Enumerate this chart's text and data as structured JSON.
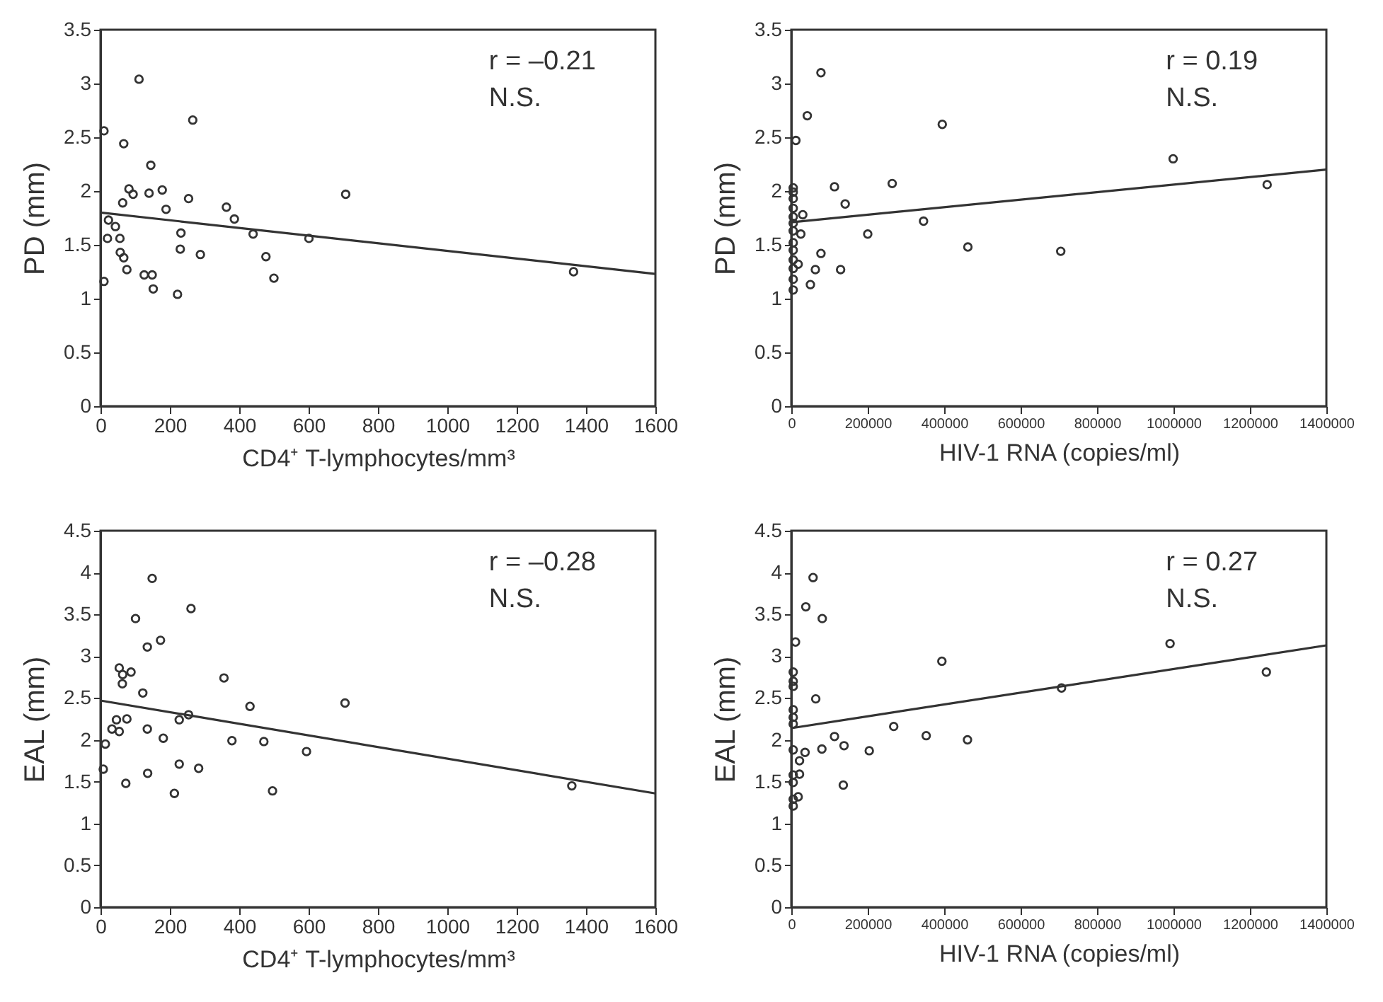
{
  "chart_data": [
    {
      "type": "scatter",
      "xlabel": "CD4⁺ T-lymphocytes/mm³",
      "ylabel": "PD (mm)",
      "xlim": [
        0,
        1600
      ],
      "xticks": [
        0,
        200,
        400,
        600,
        800,
        1000,
        1200,
        1400,
        1600
      ],
      "ylim": [
        0,
        3.5
      ],
      "yticks": [
        0,
        0.5,
        1,
        1.5,
        2,
        2.5,
        3,
        3.5
      ],
      "marker": "circle",
      "grid": false,
      "annotations": [
        "r = –0.21",
        "N.S."
      ],
      "series": [
        {
          "color": "#333333",
          "x": [
            10,
            111,
            67,
            266,
            145,
            82,
            94,
            64,
            140,
            178,
            254,
            189,
            363,
            386,
            707,
            23,
            43,
            20,
            56,
            232,
            440,
            601,
            57,
            67,
            230,
            288,
            477,
            76,
            126,
            149,
            500,
            10,
            152,
            222,
            1364
          ],
          "values": [
            2.56,
            3.04,
            2.44,
            2.66,
            2.24,
            2.02,
            1.97,
            1.89,
            1.98,
            2.01,
            1.93,
            1.83,
            1.85,
            1.74,
            1.97,
            1.73,
            1.67,
            1.56,
            1.56,
            1.61,
            1.6,
            1.56,
            1.43,
            1.38,
            1.46,
            1.41,
            1.39,
            1.27,
            1.22,
            1.22,
            1.19,
            1.16,
            1.09,
            1.04,
            1.25
          ]
        },
        {
          "type": "line",
          "marker": "none",
          "color": "#333333",
          "x": [
            0,
            1600
          ],
          "values": [
            1.8,
            1.23
          ]
        }
      ]
    },
    {
      "type": "scatter",
      "xlabel": "HIV-1 RNA (copies/ml)",
      "ylabel": "PD (mm)",
      "xlim": [
        0,
        1400000
      ],
      "xticks": [
        0,
        200000,
        400000,
        600000,
        800000,
        1000000,
        1200000,
        1400000
      ],
      "ylim": [
        0,
        3.5
      ],
      "yticks": [
        0,
        0.5,
        1,
        1.5,
        2,
        2.5,
        3,
        3.5
      ],
      "marker": "circle",
      "grid": false,
      "annotations": [
        "r = 0.19",
        "N.S."
      ],
      "series": [
        {
          "color": "#333333",
          "x": [
            77600,
            41800,
            12000,
            395000,
            999000,
            1245000,
            264000,
            113000,
            141000,
            346000,
            200000,
            462000,
            705000,
            30000,
            25000,
            77600,
            63000,
            129000,
            50000,
            18000,
            5000,
            5000,
            5000,
            5000,
            5000,
            5000,
            5000,
            5000,
            5000,
            5000,
            5000,
            5000,
            5000
          ],
          "values": [
            3.1,
            2.7,
            2.47,
            2.62,
            2.3,
            2.06,
            2.07,
            2.04,
            1.88,
            1.72,
            1.6,
            1.48,
            1.44,
            1.78,
            1.6,
            1.42,
            1.27,
            1.27,
            1.13,
            1.32,
            2.03,
            1.99,
            1.93,
            1.84,
            1.76,
            1.7,
            1.63,
            1.52,
            1.45,
            1.36,
            1.28,
            1.18,
            1.08
          ]
        },
        {
          "type": "line",
          "marker": "none",
          "color": "#333333",
          "x": [
            0,
            1400000
          ],
          "values": [
            1.71,
            2.2
          ]
        }
      ]
    },
    {
      "type": "scatter",
      "xlabel": "CD4⁺ T-lymphocytes/mm³",
      "ylabel": "EAL (mm)",
      "xlim": [
        0,
        1600
      ],
      "xticks": [
        0,
        200,
        400,
        600,
        800,
        1000,
        1200,
        1400,
        1600
      ],
      "ylim": [
        0,
        4.5
      ],
      "yticks": [
        0,
        0.5,
        1,
        1.5,
        2,
        2.5,
        3,
        3.5,
        4,
        4.5
      ],
      "marker": "circle",
      "grid": false,
      "annotations": [
        "r = –0.28",
        "N.S."
      ],
      "series": [
        {
          "color": "#333333",
          "x": [
            149,
            261,
            101,
            135,
            173,
            54,
            64,
            88,
            63,
            122,
            356,
            431,
            705,
            254,
            227,
            46,
            76,
            33,
            54,
            135,
            181,
            379,
            471,
            594,
            14,
            8,
            227,
            283,
            136,
            73,
            213,
            496,
            1359
          ],
          "values": [
            3.93,
            3.57,
            3.45,
            3.11,
            3.19,
            2.86,
            2.78,
            2.81,
            2.67,
            2.56,
            2.74,
            2.4,
            2.44,
            2.3,
            2.24,
            2.24,
            2.25,
            2.13,
            2.1,
            2.13,
            2.02,
            1.99,
            1.98,
            1.86,
            1.95,
            1.65,
            1.71,
            1.66,
            1.6,
            1.48,
            1.36,
            1.39,
            1.45
          ]
        },
        {
          "type": "line",
          "marker": "none",
          "color": "#333333",
          "x": [
            0,
            1600
          ],
          "values": [
            2.47,
            1.36
          ]
        }
      ]
    },
    {
      "type": "scatter",
      "xlabel": "HIV-1 RNA (copies/ml)",
      "ylabel": "EAL (mm)",
      "xlim": [
        0,
        1400000
      ],
      "xticks": [
        0,
        200000,
        400000,
        600000,
        800000,
        1000000,
        1200000,
        1400000
      ],
      "ylim": [
        0,
        4.5
      ],
      "yticks": [
        0,
        0.5,
        1,
        1.5,
        2,
        2.5,
        3,
        3.5,
        4,
        4.5
      ],
      "marker": "circle",
      "grid": false,
      "annotations": [
        "r = 0.27",
        "N.S."
      ],
      "series": [
        {
          "color": "#333333",
          "x": [
            57000,
            38000,
            81000,
            11000,
            394000,
            991000,
            1243000,
            707000,
            64000,
            268000,
            353000,
            461000,
            113000,
            138000,
            80000,
            204000,
            36000,
            21500,
            21500,
            136000,
            18000,
            5000,
            5000,
            5000,
            5000,
            5000,
            5000,
            5000,
            5000,
            5000,
            5000,
            5000
          ],
          "values": [
            3.94,
            3.59,
            3.45,
            3.17,
            2.94,
            3.15,
            2.81,
            2.62,
            2.49,
            2.16,
            2.05,
            2,
            2.04,
            1.93,
            1.89,
            1.87,
            1.85,
            1.75,
            1.59,
            1.46,
            1.32,
            2.81,
            2.7,
            2.64,
            2.36,
            2.27,
            2.19,
            1.88,
            1.58,
            1.49,
            1.29,
            1.21
          ]
        },
        {
          "type": "line",
          "marker": "none",
          "color": "#333333",
          "x": [
            0,
            1400000
          ],
          "values": [
            2.14,
            3.13
          ]
        }
      ]
    }
  ]
}
